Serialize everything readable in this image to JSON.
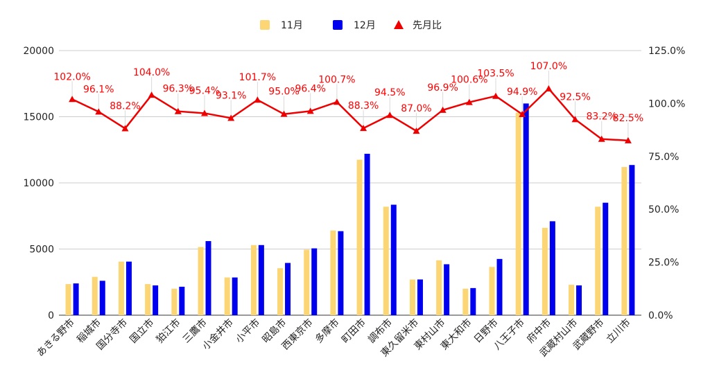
{
  "chart_data": {
    "type": "bar",
    "title": "",
    "categories": [
      "あきる野市",
      "稲城市",
      "国分寺市",
      "国立市",
      "狛江市",
      "三鷹市",
      "小金井市",
      "小平市",
      "昭島市",
      "西東京市",
      "多摩市",
      "町田市",
      "調布市",
      "東久留米市",
      "東村山市",
      "東大和市",
      "日野市",
      "八王子市",
      "府中市",
      "武蔵村山市",
      "武蔵野市",
      "立川市"
    ],
    "series": [
      {
        "name": "11月",
        "kind": "bar",
        "axis": "left",
        "color": "#fcd575",
        "values": [
          2350,
          2900,
          4050,
          2350,
          2000,
          5150,
          2850,
          5300,
          3550,
          4950,
          6400,
          11750,
          8200,
          2700,
          4150,
          2000,
          3650,
          15300,
          6600,
          2300,
          8200,
          11200
        ]
      },
      {
        "name": "12月",
        "kind": "bar",
        "axis": "left",
        "color": "#0000ee",
        "values": [
          2400,
          2600,
          4050,
          2250,
          2150,
          5600,
          2850,
          5300,
          3950,
          5050,
          6350,
          12200,
          8350,
          2700,
          3850,
          2050,
          4250,
          16000,
          7100,
          2250,
          8500,
          11350
        ]
      },
      {
        "name": "先月比",
        "kind": "line",
        "axis": "right",
        "color": "#ee0000",
        "values": [
          102.0,
          96.1,
          88.2,
          104.0,
          96.3,
          95.4,
          93.1,
          101.7,
          95.0,
          96.4,
          100.7,
          88.3,
          94.5,
          87.0,
          96.9,
          100.6,
          103.5,
          94.9,
          107.0,
          92.5,
          83.2,
          82.5
        ],
        "labels": [
          "102.0%",
          "96.1%",
          "88.2%",
          "104.0%",
          "96.3%",
          "95.4%",
          "93.1%",
          "101.7%",
          "95.0%",
          "96.4%",
          "100.7%",
          "88.3%",
          "94.5%",
          "87.0%",
          "96.9%",
          "100.6%",
          "103.5%",
          "94.9%",
          "107.0%",
          "92.5%",
          "83.2%",
          "82.5%"
        ]
      }
    ],
    "y_left": {
      "min": 0,
      "max": 20000,
      "ticks": [
        "0",
        "5000",
        "10000",
        "15000",
        "20000"
      ]
    },
    "y_right": {
      "min": 0,
      "max": 125,
      "ticks": [
        "0.0%",
        "25.0%",
        "50.0%",
        "75.0%",
        "100.0%",
        "125.0%"
      ]
    },
    "legend": {
      "position": "top",
      "items": [
        "11月",
        "12月",
        "先月比"
      ]
    },
    "grid": true
  }
}
